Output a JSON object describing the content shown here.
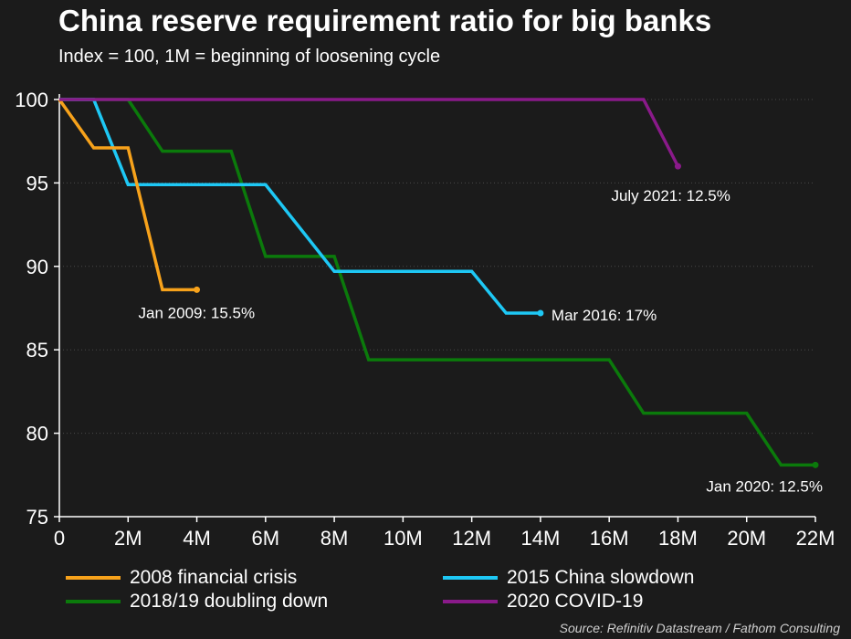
{
  "title": "China reserve requirement ratio for big banks",
  "subtitle": "Index = 100, 1M = beginning of loosening cycle",
  "source": "Source: Refinitiv Datastream / Fathom Consulting",
  "chart_data": {
    "type": "line",
    "title": "China reserve requirement ratio for big banks",
    "subtitle": "Index = 100, 1M = beginning of loosening cycle",
    "xlabel": "",
    "ylabel": "",
    "xlim": [
      0,
      22
    ],
    "ylim": [
      75,
      100
    ],
    "x_ticks": [
      0,
      2,
      4,
      6,
      8,
      10,
      12,
      14,
      16,
      18,
      20,
      22
    ],
    "x_tick_labels": [
      "0",
      "2M",
      "4M",
      "6M",
      "8M",
      "10M",
      "12M",
      "14M",
      "16M",
      "18M",
      "20M",
      "22M"
    ],
    "y_ticks": [
      75,
      80,
      85,
      90,
      95,
      100
    ],
    "y_tick_labels": [
      "75",
      "80",
      "85",
      "90",
      "95",
      "100"
    ],
    "grid": true,
    "legend_position": "bottom",
    "series": [
      {
        "name": "2008 financial crisis",
        "color": "#f7a21b",
        "x": [
          0,
          1,
          2,
          3,
          4
        ],
        "y": [
          100,
          97.1,
          97.1,
          88.6,
          88.6
        ],
        "end_label": "Jan 2009: 15.5%"
      },
      {
        "name": "2015 China slowdown",
        "color": "#1ec8f5",
        "x": [
          0,
          1,
          2,
          6,
          8,
          12,
          13,
          14
        ],
        "y": [
          100,
          100,
          94.9,
          94.9,
          89.7,
          89.7,
          87.2,
          87.2
        ],
        "end_label": "Mar 2016: 17%"
      },
      {
        "name": "2018/19 doubling down",
        "color": "#0b7a0b",
        "x": [
          0,
          2,
          3,
          5,
          6,
          8,
          9,
          16,
          17,
          20,
          21,
          22
        ],
        "y": [
          100,
          100,
          96.9,
          96.9,
          90.6,
          90.6,
          84.4,
          84.4,
          81.2,
          81.2,
          78.1,
          78.1
        ],
        "end_label": "Jan 2020: 12.5%"
      },
      {
        "name": "2020 COVID-19",
        "color": "#8a1a8a",
        "x": [
          0,
          17,
          18
        ],
        "y": [
          100,
          100,
          96.0
        ],
        "end_label": "July 2021: 12.5%"
      }
    ]
  }
}
